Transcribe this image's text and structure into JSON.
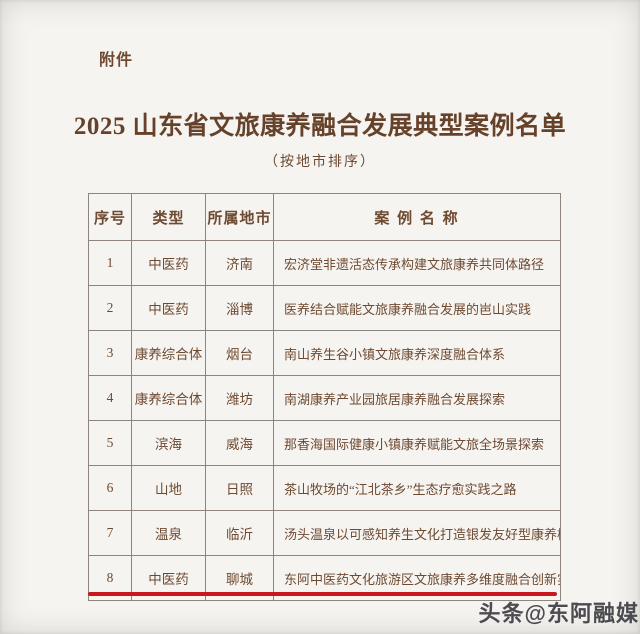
{
  "page": {
    "attachment_label": "附件",
    "title": "2025 山东省文旅康养融合发展典型案例名单",
    "subtitle": "（按地市排序）"
  },
  "table": {
    "headers": {
      "no": "序号",
      "type": "类型",
      "city": "所属地市",
      "case_name": "案 例 名 称"
    },
    "rows": [
      {
        "no": "1",
        "type": "中医药",
        "city": "济南",
        "case_name": "宏济堂非遗活态传承构建文旅康养共同体路径"
      },
      {
        "no": "2",
        "type": "中医药",
        "city": "淄博",
        "case_name": "医养结合赋能文旅康养融合发展的岜山实践"
      },
      {
        "no": "3",
        "type": "康养综合体",
        "city": "烟台",
        "case_name": "南山养生谷小镇文旅康养深度融合体系"
      },
      {
        "no": "4",
        "type": "康养综合体",
        "city": "潍坊",
        "case_name": "南湖康养产业园旅居康养融合发展探索"
      },
      {
        "no": "5",
        "type": "滨海",
        "city": "威海",
        "case_name": "那香海国际健康小镇康养赋能文旅全场景探索"
      },
      {
        "no": "6",
        "type": "山地",
        "city": "日照",
        "case_name": "茶山牧场的“江北茶乡”生态疗愈实践之路"
      },
      {
        "no": "7",
        "type": "温泉",
        "city": "临沂",
        "case_name": "汤头温泉以可感知养生文化打造银发友好型康养模式"
      },
      {
        "no": "8",
        "type": "中医药",
        "city": "聊城",
        "case_name": "东阿中医药文化旅游区文旅康养多维度融合创新实践"
      }
    ],
    "highlighted_row_index": 8
  },
  "watermark": {
    "text": "头条@东阿融媒"
  },
  "colors": {
    "paper": "#f6f4f1",
    "ink": "#6e4a31",
    "title_ink": "#66422a",
    "table_border": "#8f857c",
    "highlight_red": "#c9181d",
    "watermark_gray": "#38383e"
  }
}
